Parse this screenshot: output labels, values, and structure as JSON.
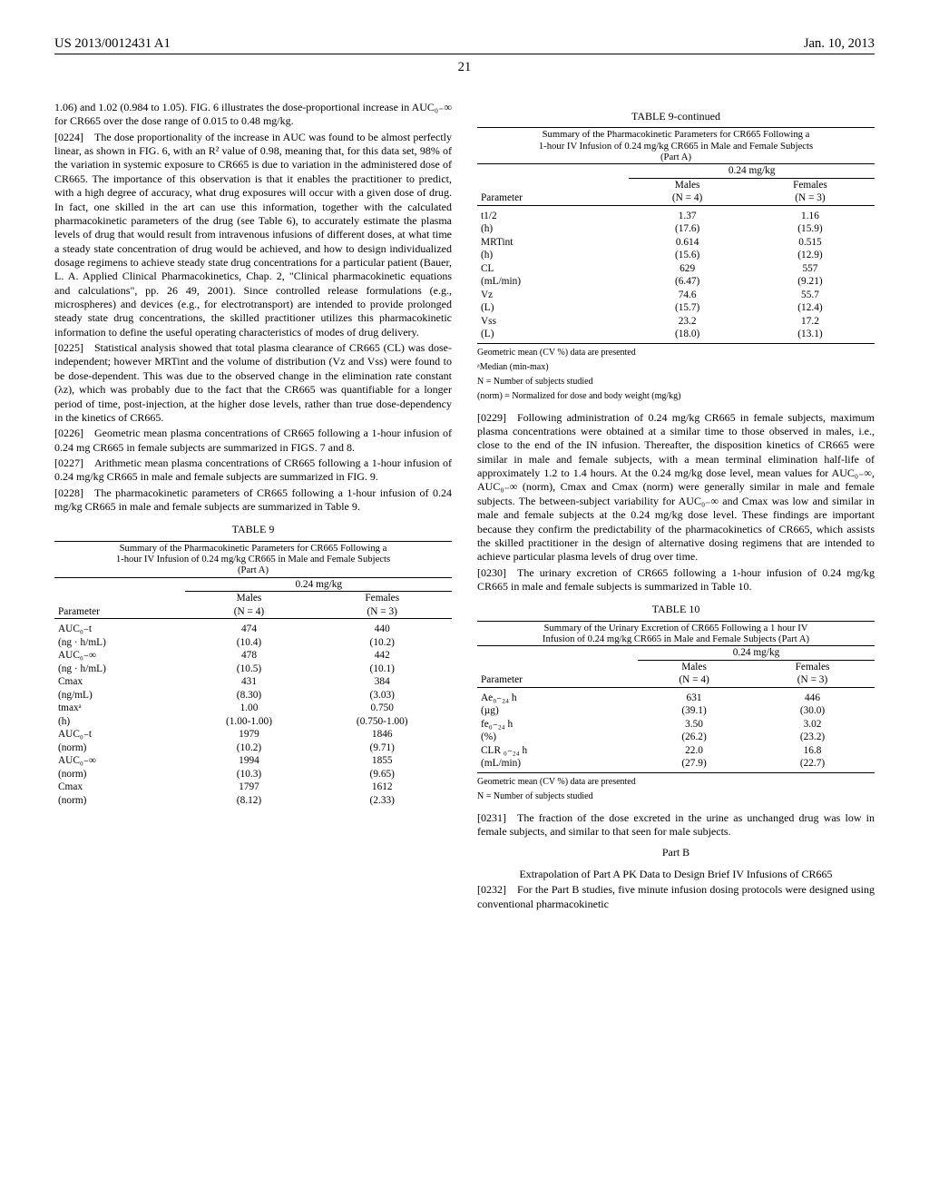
{
  "header": {
    "pub_no": "US 2013/0012431 A1",
    "date": "Jan. 10, 2013",
    "page": "21"
  },
  "left": {
    "intro": "1.06) and 1.02 (0.984 to 1.05). FIG. 6 illustrates the dose-proportional increase in AUC₀₋∞ for CR665 over the dose range of 0.015 to 0.48 mg/kg.",
    "p0224": "[0224] The dose proportionality of the increase in AUC was found to be almost perfectly linear, as shown in FIG. 6, with an R² value of 0.98, meaning that, for this data set, 98% of the variation in systemic exposure to CR665 is due to variation in the administered dose of CR665. The importance of this observation is that it enables the practitioner to predict, with a high degree of accuracy, what drug exposures will occur with a given dose of drug. In fact, one skilled in the art can use this information, together with the calculated pharmacokinetic parameters of the drug (see Table 6), to accurately estimate the plasma levels of drug that would result from intravenous infusions of different doses, at what time a steady state concentration of drug would be achieved, and how to design individualized dosage regimens to achieve steady state drug concentrations for a particular patient (Bauer, L. A. Applied Clinical Pharmacokinetics, Chap. 2, \"Clinical pharmacokinetic equations and calculations\", pp. 26 49, 2001). Since controlled release formulations (e.g., microspheres) and devices (e.g., for electrotransport) are intended to provide prolonged steady state drug concentrations, the skilled practitioner utilizes this pharmacokinetic information to define the useful operating characteristics of modes of drug delivery.",
    "p0225": "[0225] Statistical analysis showed that total plasma clearance of CR665 (CL) was dose-independent; however MRTint and the volume of distribution (Vz and Vss) were found to be dose-dependent. This was due to the observed change in the elimination rate constant (λz), which was probably due to the fact that the CR665 was quantifiable for a longer period of time, post-injection, at the higher dose levels, rather than true dose-dependency in the kinetics of CR665.",
    "p0226": "[0226] Geometric mean plasma concentrations of CR665 following a 1-hour infusion of 0.24 mg CR665 in female subjects are summarized in FIGS. 7 and 8.",
    "p0227": "[0227] Arithmetic mean plasma concentrations of CR665 following a 1-hour infusion of 0.24 mg/kg CR665 in male and female subjects are summarized in FIG. 9.",
    "p0228": "[0228] The pharmacokinetic parameters of CR665 following a 1-hour infusion of 0.24 mg/kg CR665 in male and female subjects are summarized in Table 9."
  },
  "table9": {
    "title": "TABLE 9",
    "sub1": "Summary of the Pharmacokinetic Parameters for CR665 Following a",
    "sub2": "1-hour IV Infusion of 0.24 mg/kg CR665 in Male and Female Subjects",
    "sub3": "(Part A)",
    "dose": "0.24 mg/kg",
    "colh_param": "Parameter",
    "colh_m": "Males",
    "colh_m2": "(N = 4)",
    "colh_f": "Females",
    "colh_f2": "(N = 3)",
    "rows": [
      [
        "AUC₀₋t",
        "474",
        "440"
      ],
      [
        "(ng · h/mL)",
        "(10.4)",
        "(10.2)"
      ],
      [
        "AUC₀₋∞",
        "478",
        "442"
      ],
      [
        "(ng · h/mL)",
        "(10.5)",
        "(10.1)"
      ],
      [
        "Cmax",
        "431",
        "384"
      ],
      [
        "(ng/mL)",
        "(8.30)",
        "(3.03)"
      ],
      [
        "tmaxᵃ",
        "1.00",
        "0.750"
      ],
      [
        "(h)",
        "(1.00-1.00)",
        "(0.750-1.00)"
      ],
      [
        "AUC₀₋t",
        "1979",
        "1846"
      ],
      [
        "(norm)",
        "(10.2)",
        "(9.71)"
      ],
      [
        "AUC₀₋∞",
        "1994",
        "1855"
      ],
      [
        "(norm)",
        "(10.3)",
        "(9.65)"
      ],
      [
        "Cmax",
        "1797",
        "1612"
      ],
      [
        "(norm)",
        "(8.12)",
        "(2.33)"
      ]
    ]
  },
  "table9c": {
    "title": "TABLE 9-continued",
    "sub1": "Summary of the Pharmacokinetic Parameters for CR665 Following a",
    "sub2": "1-hour IV Infusion of 0.24 mg/kg CR665 in Male and Female Subjects",
    "sub3": "(Part A)",
    "dose": "0.24 mg/kg",
    "colh_param": "Parameter",
    "colh_m": "Males",
    "colh_m2": "(N = 4)",
    "colh_f": "Females",
    "colh_f2": "(N = 3)",
    "rows": [
      [
        "t1/2",
        "1.37",
        "1.16"
      ],
      [
        "(h)",
        "(17.6)",
        "(15.9)"
      ],
      [
        "MRTint",
        "0.614",
        "0.515"
      ],
      [
        "(h)",
        "(15.6)",
        "(12.9)"
      ],
      [
        "CL",
        "629",
        "557"
      ],
      [
        "(mL/min)",
        "(6.47)",
        "(9.21)"
      ],
      [
        "Vz",
        "74.6",
        "55.7"
      ],
      [
        "(L)",
        "(15.7)",
        "(12.4)"
      ],
      [
        "Vss",
        "23.2",
        "17.2"
      ],
      [
        "(L)",
        "(18.0)",
        "(13.1)"
      ]
    ],
    "fn1": "Geometric mean (CV %) data are presented",
    "fn2": "ᵃMedian (min-max)",
    "fn3": "N = Number of subjects studied",
    "fn4": "(norm) = Normalized for dose and body weight (mg/kg)"
  },
  "right": {
    "p0229": "[0229] Following administration of 0.24 mg/kg CR665 in female subjects, maximum plasma concentrations were obtained at a similar time to those observed in males, i.e., close to the end of the IN infusion. Thereafter, the disposition kinetics of CR665 were similar in male and female subjects, with a mean terminal elimination half-life of approximately 1.2 to 1.4 hours. At the 0.24 mg/kg dose level, mean values for AUC₀₋∞, AUC₀₋∞ (norm), Cmax and Cmax (norm) were generally similar in male and female subjects. The between-subject variability for AUC₀₋∞ and Cmax was low and similar in male and female subjects at the 0.24 mg/kg dose level. These findings are important because they confirm the predictability of the pharmacokinetics of CR665, which assists the skilled practitioner in the design of alternative dosing regimens that are intended to achieve particular plasma levels of drug over time.",
    "p0230": "[0230] The urinary excretion of CR665 following a 1-hour infusion of 0.24 mg/kg CR665 in male and female subjects is summarized in Table 10."
  },
  "table10": {
    "title": "TABLE 10",
    "sub1": "Summary of the Urinary Excretion of CR665 Following a 1 hour IV",
    "sub2": "Infusion of 0.24 mg/kg CR665 in Male and Female Subjects (Part A)",
    "dose": "0.24 mg/kg",
    "colh_param": "Parameter",
    "colh_m": "Males",
    "colh_m2": "(N = 4)",
    "colh_f": "Females",
    "colh_f2": "(N = 3)",
    "rows": [
      [
        "Ae₀₋₂₄ h",
        "631",
        "446"
      ],
      [
        "(µg)",
        "(39.1)",
        "(30.0)"
      ],
      [
        "fe₀₋₂₄ h",
        "3.50",
        "3.02"
      ],
      [
        "(%)",
        "(26.2)",
        "(23.2)"
      ],
      [
        "CLR ₀₋₂₄ h",
        "22.0",
        "16.8"
      ],
      [
        "(mL/min)",
        "(27.9)",
        "(22.7)"
      ]
    ],
    "fn1": "Geometric mean (CV %) data are presented",
    "fn2": "N = Number of subjects studied"
  },
  "right2": {
    "p0231": "[0231] The fraction of the dose excreted in the urine as unchanged drug was low in female subjects, and similar to that seen for male subjects.",
    "partB": "Part B",
    "partB_sub": "Extrapolation of Part A PK Data to Design Brief IV Infusions of CR665",
    "p0232": "[0232] For the Part B studies, five minute infusion dosing protocols were designed using conventional pharmacokinetic"
  }
}
